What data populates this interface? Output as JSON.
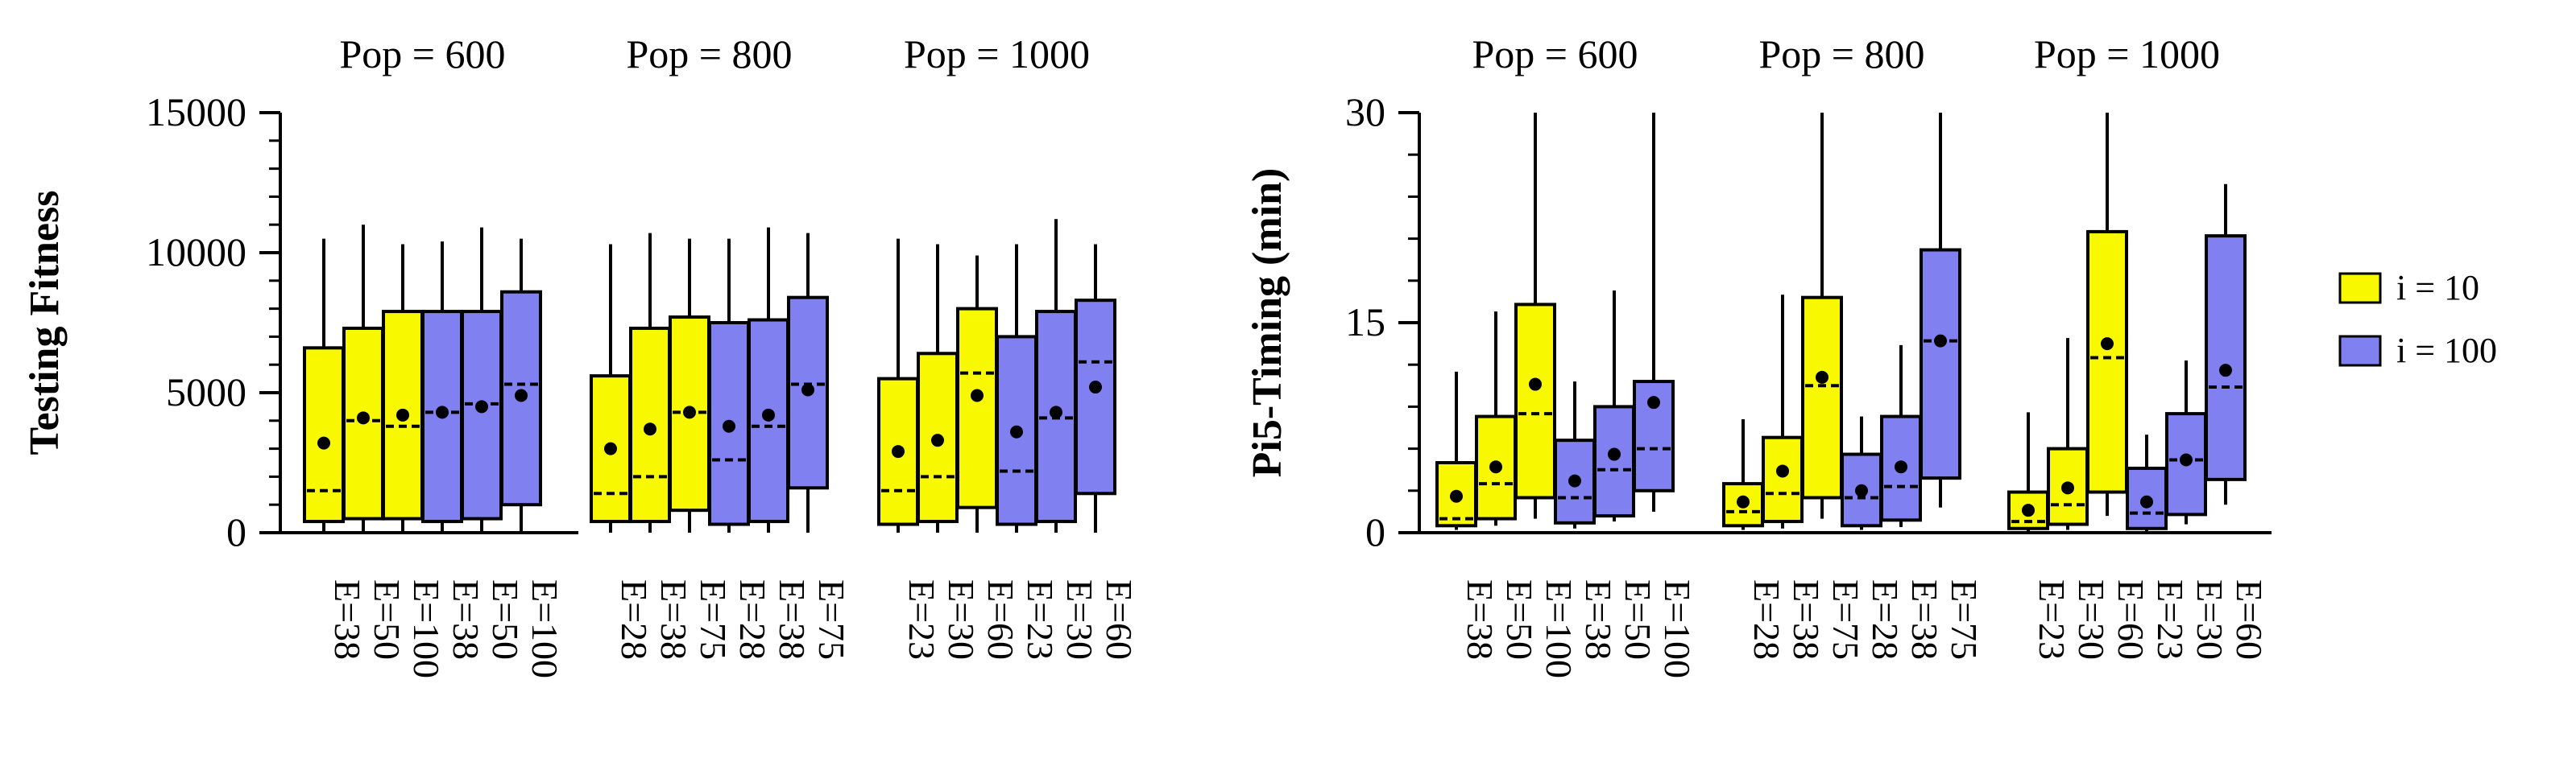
{
  "colors": {
    "yellow": "#f8f800",
    "blue": "#8080f0",
    "stroke": "#000000"
  },
  "legend": {
    "position": "right",
    "items": [
      {
        "label": "i = 10",
        "color_key": "yellow"
      },
      {
        "label": "i = 100",
        "color_key": "blue"
      }
    ]
  },
  "chart_data": [
    {
      "type": "box",
      "ylabel": "Testing Fitness",
      "ylim": [
        0,
        15000
      ],
      "yticks": [
        0,
        5000,
        10000,
        15000
      ],
      "ytick_labels": [
        "0",
        "5000",
        "10000",
        "15000"
      ],
      "groups": [
        {
          "label": "Pop = 600",
          "boxes": [
            {
              "label": "E=38",
              "series": "i = 10",
              "whisker_low": 0,
              "q1": 400,
              "median": 1500,
              "q3": 6600,
              "whisker_high": 10500,
              "mean": 3200
            },
            {
              "label": "E=50",
              "series": "i = 10",
              "whisker_low": 0,
              "q1": 500,
              "median": 4000,
              "q3": 7300,
              "whisker_high": 11000,
              "mean": 4100
            },
            {
              "label": "E=100",
              "series": "i = 10",
              "whisker_low": 0,
              "q1": 500,
              "median": 3800,
              "q3": 7900,
              "whisker_high": 10300,
              "mean": 4200
            },
            {
              "label": "E=38",
              "series": "i = 100",
              "whisker_low": 0,
              "q1": 400,
              "median": 4300,
              "q3": 7900,
              "whisker_high": 10400,
              "mean": 4300
            },
            {
              "label": "E=50",
              "series": "i = 100",
              "whisker_low": 0,
              "q1": 500,
              "median": 4600,
              "q3": 7900,
              "whisker_high": 10900,
              "mean": 4500
            },
            {
              "label": "E=100",
              "series": "i = 100",
              "whisker_low": 0,
              "q1": 1000,
              "median": 5300,
              "q3": 8600,
              "whisker_high": 10500,
              "mean": 4900
            }
          ]
        },
        {
          "label": "Pop = 800",
          "boxes": [
            {
              "label": "E=28",
              "series": "i = 10",
              "whisker_low": 0,
              "q1": 400,
              "median": 1400,
              "q3": 5600,
              "whisker_high": 10300,
              "mean": 3000
            },
            {
              "label": "E=38",
              "series": "i = 10",
              "whisker_low": 0,
              "q1": 400,
              "median": 2000,
              "q3": 7300,
              "whisker_high": 10700,
              "mean": 3700
            },
            {
              "label": "E=75",
              "series": "i = 10",
              "whisker_low": 0,
              "q1": 800,
              "median": 4300,
              "q3": 7700,
              "whisker_high": 10500,
              "mean": 4300
            },
            {
              "label": "E=28",
              "series": "i = 100",
              "whisker_low": 0,
              "q1": 300,
              "median": 2600,
              "q3": 7500,
              "whisker_high": 10500,
              "mean": 3800
            },
            {
              "label": "E=38",
              "series": "i = 100",
              "whisker_low": 0,
              "q1": 400,
              "median": 3800,
              "q3": 7600,
              "whisker_high": 10900,
              "mean": 4200
            },
            {
              "label": "E=75",
              "series": "i = 100",
              "whisker_low": 0,
              "q1": 1600,
              "median": 5300,
              "q3": 8400,
              "whisker_high": 10700,
              "mean": 5100
            }
          ]
        },
        {
          "label": "Pop = 1000",
          "boxes": [
            {
              "label": "E=23",
              "series": "i = 10",
              "whisker_low": 0,
              "q1": 300,
              "median": 1500,
              "q3": 5500,
              "whisker_high": 10500,
              "mean": 2900
            },
            {
              "label": "E=30",
              "series": "i = 10",
              "whisker_low": 0,
              "q1": 400,
              "median": 2000,
              "q3": 6400,
              "whisker_high": 10300,
              "mean": 3300
            },
            {
              "label": "E=60",
              "series": "i = 10",
              "whisker_low": 0,
              "q1": 900,
              "median": 5700,
              "q3": 8000,
              "whisker_high": 9900,
              "mean": 4900
            },
            {
              "label": "E=23",
              "series": "i = 100",
              "whisker_low": 0,
              "q1": 300,
              "median": 2200,
              "q3": 7000,
              "whisker_high": 10300,
              "mean": 3600
            },
            {
              "label": "E=30",
              "series": "i = 100",
              "whisker_low": 0,
              "q1": 400,
              "median": 4100,
              "q3": 7900,
              "whisker_high": 11200,
              "mean": 4300
            },
            {
              "label": "E=60",
              "series": "i = 100",
              "whisker_low": 0,
              "q1": 1400,
              "median": 6100,
              "q3": 8300,
              "whisker_high": 10300,
              "mean": 5200
            }
          ]
        }
      ]
    },
    {
      "type": "box",
      "ylabel": "Pi5-Timing (min)",
      "ylim": [
        0,
        30
      ],
      "yticks": [
        0,
        15,
        30
      ],
      "ytick_labels": [
        "0",
        "15",
        "30"
      ],
      "groups": [
        {
          "label": "Pop = 600",
          "boxes": [
            {
              "label": "E=38",
              "series": "i = 10",
              "whisker_low": 0.2,
              "q1": 0.5,
              "median": 1.0,
              "q3": 5.0,
              "whisker_high": 11.5,
              "mean": 2.6
            },
            {
              "label": "E=50",
              "series": "i = 10",
              "whisker_low": 0.5,
              "q1": 1.0,
              "median": 3.5,
              "q3": 8.3,
              "whisker_high": 15.8,
              "mean": 4.7
            },
            {
              "label": "E=100",
              "series": "i = 10",
              "whisker_low": 1.0,
              "q1": 2.5,
              "median": 8.5,
              "q3": 16.3,
              "whisker_high": 30.0,
              "mean": 10.6
            },
            {
              "label": "E=38",
              "series": "i = 100",
              "whisker_low": 0.3,
              "q1": 0.7,
              "median": 2.5,
              "q3": 6.6,
              "whisker_high": 10.8,
              "mean": 3.7
            },
            {
              "label": "E=50",
              "series": "i = 100",
              "whisker_low": 0.8,
              "q1": 1.2,
              "median": 4.5,
              "q3": 9.0,
              "whisker_high": 17.3,
              "mean": 5.6
            },
            {
              "label": "E=100",
              "series": "i = 100",
              "whisker_low": 1.5,
              "q1": 3.0,
              "median": 6.0,
              "q3": 10.8,
              "whisker_high": 30.0,
              "mean": 9.3
            }
          ]
        },
        {
          "label": "Pop = 800",
          "boxes": [
            {
              "label": "E=28",
              "series": "i = 10",
              "whisker_low": 0.2,
              "q1": 0.5,
              "median": 1.5,
              "q3": 3.5,
              "whisker_high": 8.1,
              "mean": 2.2
            },
            {
              "label": "E=38",
              "series": "i = 10",
              "whisker_low": 0.3,
              "q1": 0.8,
              "median": 2.8,
              "q3": 6.8,
              "whisker_high": 17.0,
              "mean": 4.4
            },
            {
              "label": "E=75",
              "series": "i = 10",
              "whisker_low": 1.0,
              "q1": 2.5,
              "median": 10.5,
              "q3": 16.8,
              "whisker_high": 30.0,
              "mean": 11.1
            },
            {
              "label": "E=28",
              "series": "i = 100",
              "whisker_low": 0.2,
              "q1": 0.5,
              "median": 2.5,
              "q3": 5.6,
              "whisker_high": 8.3,
              "mean": 3.0
            },
            {
              "label": "E=38",
              "series": "i = 100",
              "whisker_low": 0.4,
              "q1": 0.9,
              "median": 3.3,
              "q3": 8.3,
              "whisker_high": 13.4,
              "mean": 4.7
            },
            {
              "label": "E=75",
              "series": "i = 100",
              "whisker_low": 1.8,
              "q1": 3.9,
              "median": 13.7,
              "q3": 20.2,
              "whisker_high": 30.0,
              "mean": 13.7
            }
          ]
        },
        {
          "label": "Pop = 1000",
          "boxes": [
            {
              "label": "E=23",
              "series": "i = 10",
              "whisker_low": 0.1,
              "q1": 0.3,
              "median": 0.8,
              "q3": 2.9,
              "whisker_high": 8.6,
              "mean": 1.6
            },
            {
              "label": "E=30",
              "series": "i = 10",
              "whisker_low": 0.2,
              "q1": 0.6,
              "median": 2.0,
              "q3": 6.0,
              "whisker_high": 13.9,
              "mean": 3.2
            },
            {
              "label": "E=60",
              "series": "i = 10",
              "whisker_low": 1.2,
              "q1": 2.9,
              "median": 12.5,
              "q3": 21.5,
              "whisker_high": 30.0,
              "mean": 13.5
            },
            {
              "label": "E=23",
              "series": "i = 100",
              "whisker_low": 0.1,
              "q1": 0.3,
              "median": 1.4,
              "q3": 4.6,
              "whisker_high": 7.0,
              "mean": 2.2
            },
            {
              "label": "E=30",
              "series": "i = 100",
              "whisker_low": 0.6,
              "q1": 1.3,
              "median": 5.2,
              "q3": 8.5,
              "whisker_high": 12.3,
              "mean": 5.2
            },
            {
              "label": "E=60",
              "series": "i = 100",
              "whisker_low": 2.0,
              "q1": 3.8,
              "median": 10.4,
              "q3": 21.2,
              "whisker_high": 24.9,
              "mean": 11.6
            }
          ]
        }
      ]
    }
  ]
}
